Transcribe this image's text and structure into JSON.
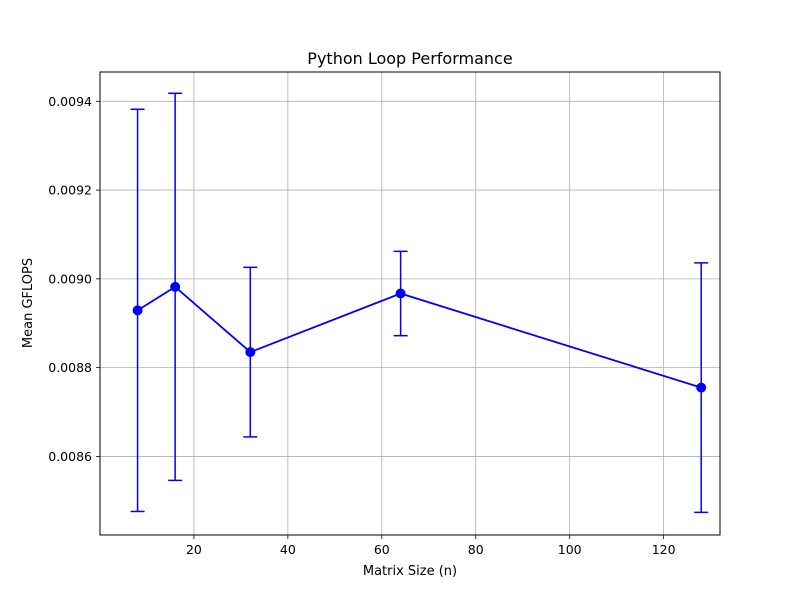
{
  "chart_data": {
    "type": "line",
    "title": "Python Loop Performance",
    "xlabel": "Matrix Size (n)",
    "ylabel": "Mean GFLOPS",
    "xlim": [
      0.0,
      132.0
    ],
    "ylim": [
      0.008423,
      0.009466
    ],
    "xticks": [
      20,
      40,
      60,
      80,
      100,
      120
    ],
    "xtick_labels": [
      "20",
      "40",
      "60",
      "80",
      "100",
      "120"
    ],
    "yticks": [
      0.0086,
      0.0088,
      0.009,
      0.0092,
      0.0094
    ],
    "ytick_labels": [
      "0.0086",
      "0.0088",
      "0.0090",
      "0.0092",
      "0.0094"
    ],
    "grid": true,
    "series": [
      {
        "color": "#0000ff",
        "marker": "circle",
        "x": [
          8,
          16,
          32,
          64,
          128
        ],
        "y": [
          0.008929,
          0.008982,
          0.008835,
          0.008967,
          0.008755
        ],
        "yerr": [
          0.000453,
          0.000436,
          0.000191,
          9.5e-05,
          0.000281
        ]
      }
    ]
  }
}
